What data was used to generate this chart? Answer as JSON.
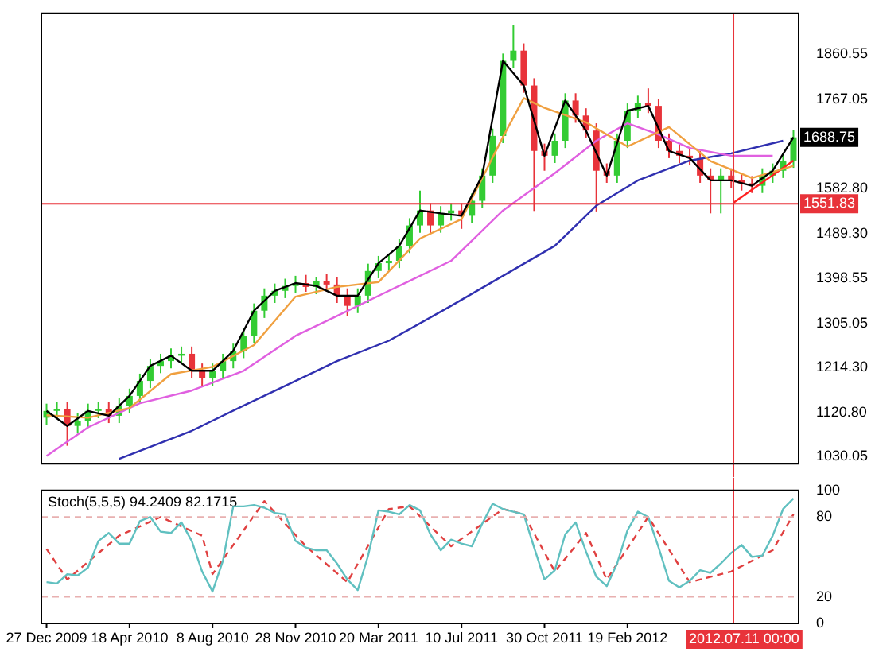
{
  "chart_data": [
    {
      "type": "candlestick",
      "x": [
        "2009-12-27",
        "2010-01-10",
        "2010-01-24",
        "2010-02-07",
        "2010-02-21",
        "2010-03-07",
        "2010-03-21",
        "2010-04-04",
        "2010-04-18",
        "2010-05-02",
        "2010-05-16",
        "2010-05-30",
        "2010-06-13",
        "2010-06-27",
        "2010-07-11",
        "2010-07-25",
        "2010-08-08",
        "2010-08-22",
        "2010-09-05",
        "2010-09-19",
        "2010-10-03",
        "2010-10-17",
        "2010-10-31",
        "2010-11-14",
        "2010-11-28",
        "2010-12-12",
        "2010-12-26",
        "2011-01-09",
        "2011-01-23",
        "2011-02-06",
        "2011-02-20",
        "2011-03-06",
        "2011-03-20",
        "2011-04-03",
        "2011-04-17",
        "2011-05-01",
        "2011-05-15",
        "2011-05-29",
        "2011-06-12",
        "2011-06-26",
        "2011-07-10",
        "2011-07-24",
        "2011-08-07",
        "2011-08-21",
        "2011-09-04",
        "2011-09-18",
        "2011-10-02",
        "2011-10-16",
        "2011-10-30",
        "2011-11-13",
        "2011-11-27",
        "2011-12-11",
        "2011-12-25",
        "2012-01-08",
        "2012-01-22",
        "2012-02-05",
        "2012-02-19",
        "2012-03-04",
        "2012-03-18",
        "2012-04-01",
        "2012-04-15",
        "2012-04-29",
        "2012-05-13",
        "2012-05-27",
        "2012-06-10",
        "2012-06-24",
        "2012-07-08",
        "2012-07-22",
        "2012-08-05",
        "2012-08-19",
        "2012-09-02",
        "2012-09-16",
        "2012-09-30"
      ],
      "ohlc": [
        [
          1110,
          1139,
          1095,
          1124
        ],
        [
          1124,
          1143,
          1109,
          1128
        ],
        [
          1128,
          1143,
          1052,
          1093
        ],
        [
          1093,
          1119,
          1078,
          1104
        ],
        [
          1104,
          1139,
          1089,
          1124
        ],
        [
          1124,
          1143,
          1109,
          1128
        ],
        [
          1128,
          1143,
          1099,
          1114
        ],
        [
          1114,
          1150,
          1099,
          1135
        ],
        [
          1135,
          1170,
          1120,
          1155
        ],
        [
          1155,
          1201,
          1140,
          1186
        ],
        [
          1186,
          1232,
          1171,
          1217
        ],
        [
          1217,
          1242,
          1202,
          1227
        ],
        [
          1227,
          1253,
          1212,
          1238
        ],
        [
          1238,
          1257,
          1223,
          1242
        ],
        [
          1242,
          1257,
          1192,
          1207
        ],
        [
          1207,
          1222,
          1176,
          1191
        ],
        [
          1191,
          1222,
          1176,
          1207
        ],
        [
          1207,
          1242,
          1192,
          1227
        ],
        [
          1227,
          1263,
          1212,
          1248
        ],
        [
          1248,
          1294,
          1233,
          1279
        ],
        [
          1279,
          1346,
          1264,
          1331
        ],
        [
          1331,
          1377,
          1316,
          1362
        ],
        [
          1362,
          1387,
          1347,
          1372
        ],
        [
          1372,
          1397,
          1357,
          1382
        ],
        [
          1382,
          1403,
          1367,
          1388
        ],
        [
          1388,
          1405,
          1370,
          1380
        ],
        [
          1380,
          1400,
          1365,
          1392
        ],
        [
          1392,
          1407,
          1370,
          1385
        ],
        [
          1385,
          1400,
          1347,
          1362
        ],
        [
          1362,
          1377,
          1320,
          1341
        ],
        [
          1341,
          1377,
          1326,
          1362
        ],
        [
          1362,
          1428,
          1347,
          1413
        ],
        [
          1413,
          1444,
          1398,
          1429
        ],
        [
          1429,
          1449,
          1414,
          1434
        ],
        [
          1434,
          1480,
          1419,
          1465
        ],
        [
          1465,
          1522,
          1450,
          1507
        ],
        [
          1507,
          1579,
          1492,
          1538
        ],
        [
          1538,
          1553,
          1490,
          1507
        ],
        [
          1507,
          1547,
          1492,
          1532
        ],
        [
          1532,
          1553,
          1517,
          1538
        ],
        [
          1538,
          1553,
          1500,
          1527
        ],
        [
          1527,
          1573,
          1512,
          1558
        ],
        [
          1558,
          1625,
          1543,
          1610
        ],
        [
          1610,
          1707,
          1595,
          1692
        ],
        [
          1692,
          1862,
          1677,
          1847
        ],
        [
          1847,
          1920,
          1832,
          1868
        ],
        [
          1868,
          1883,
          1781,
          1796
        ],
        [
          1796,
          1811,
          1537,
          1661
        ],
        [
          1661,
          1676,
          1620,
          1651
        ],
        [
          1651,
          1697,
          1636,
          1682
        ],
        [
          1682,
          1780,
          1667,
          1765
        ],
        [
          1765,
          1780,
          1719,
          1734
        ],
        [
          1734,
          1749,
          1688,
          1703
        ],
        [
          1703,
          1718,
          1536,
          1620
        ],
        [
          1620,
          1635,
          1595,
          1610
        ],
        [
          1610,
          1697,
          1595,
          1682
        ],
        [
          1682,
          1759,
          1667,
          1744
        ],
        [
          1744,
          1775,
          1729,
          1760
        ],
        [
          1760,
          1790,
          1739,
          1754
        ],
        [
          1754,
          1769,
          1667,
          1682
        ],
        [
          1682,
          1697,
          1646,
          1661
        ],
        [
          1661,
          1676,
          1636,
          1651
        ],
        [
          1651,
          1666,
          1631,
          1646
        ],
        [
          1646,
          1661,
          1595,
          1610
        ],
        [
          1610,
          1625,
          1532,
          1600
        ],
        [
          1600,
          1625,
          1532,
          1610
        ],
        [
          1610,
          1625,
          1585,
          1600
        ],
        [
          1600,
          1615,
          1579,
          1594
        ],
        [
          1594,
          1609,
          1574,
          1589
        ],
        [
          1589,
          1625,
          1574,
          1610
        ],
        [
          1610,
          1635,
          1595,
          1620
        ],
        [
          1620,
          1656,
          1605,
          1641
        ],
        [
          1641,
          1704,
          1626,
          1689
        ]
      ],
      "colors": [
        "#33cc33",
        "#33cc33",
        "#e8333a",
        "#33cc33",
        "#33cc33",
        "#33cc33",
        "#e8333a",
        "#33cc33",
        "#33cc33",
        "#33cc33",
        "#33cc33",
        "#33cc33",
        "#33cc33",
        "#33cc33",
        "#e8333a",
        "#e8333a",
        "#33cc33",
        "#33cc33",
        "#33cc33",
        "#33cc33",
        "#33cc33",
        "#33cc33",
        "#33cc33",
        "#33cc33",
        "#33cc33",
        "#e8333a",
        "#33cc33",
        "#e8333a",
        "#e8333a",
        "#e8333a",
        "#33cc33",
        "#33cc33",
        "#33cc33",
        "#33cc33",
        "#33cc33",
        "#33cc33",
        "#33cc33",
        "#e8333a",
        "#33cc33",
        "#33cc33",
        "#e8333a",
        "#33cc33",
        "#33cc33",
        "#33cc33",
        "#33cc33",
        "#33cc33",
        "#e8333a",
        "#e8333a",
        "#e8333a",
        "#33cc33",
        "#33cc33",
        "#e8333a",
        "#e8333a",
        "#e8333a",
        "#e8333a",
        "#33cc33",
        "#33cc33",
        "#33cc33",
        "#e8333a",
        "#e8333a",
        "#e8333a",
        "#e8333a",
        "#e8333a",
        "#e8333a",
        "#e8333a",
        "#33cc33",
        "#e8333a",
        "#e8333a",
        "#e8333a",
        "#33cc33",
        "#33cc33",
        "#33cc33",
        "#33cc33"
      ],
      "series": [
        {
          "type": "line",
          "color": "#000000",
          "x": [
            "2009-12-27",
            "2010-01-24",
            "2010-02-21",
            "2010-03-21",
            "2010-04-18",
            "2010-05-16",
            "2010-06-13",
            "2010-07-11",
            "2010-08-08",
            "2010-09-05",
            "2010-10-03",
            "2010-10-31",
            "2010-11-28",
            "2010-12-26",
            "2011-01-23",
            "2011-02-20",
            "2011-03-20",
            "2011-04-17",
            "2011-05-15",
            "2011-06-12",
            "2011-07-10",
            "2011-08-07",
            "2011-09-04",
            "2011-10-02",
            "2011-10-30",
            "2011-11-27",
            "2011-12-25",
            "2012-01-22",
            "2012-02-19",
            "2012-03-18",
            "2012-04-15",
            "2012-05-13",
            "2012-06-10",
            "2012-07-08",
            "2012-08-05",
            "2012-09-02",
            "2012-09-30"
          ],
          "values": [
            1124,
            1093,
            1124,
            1114,
            1155,
            1217,
            1238,
            1207,
            1207,
            1248,
            1331,
            1372,
            1388,
            1382,
            1362,
            1362,
            1429,
            1465,
            1538,
            1532,
            1527,
            1610,
            1847,
            1796,
            1651,
            1765,
            1703,
            1610,
            1744,
            1754,
            1661,
            1646,
            1600,
            1600,
            1589,
            1620,
            1689
          ]
        },
        {
          "type": "line",
          "color": "#f0a040",
          "x": [
            "2009-12-27",
            "2010-02-21",
            "2010-04-18",
            "2010-06-13",
            "2010-08-08",
            "2010-10-03",
            "2010-11-28",
            "2011-01-23",
            "2011-03-20",
            "2011-05-15",
            "2011-07-10",
            "2011-09-04",
            "2011-10-02",
            "2011-10-30",
            "2011-12-25",
            "2012-02-19",
            "2012-04-15",
            "2012-06-10",
            "2012-08-05",
            "2012-09-30"
          ],
          "values": [
            1115,
            1110,
            1130,
            1200,
            1215,
            1260,
            1360,
            1380,
            1390,
            1480,
            1520,
            1690,
            1770,
            1750,
            1720,
            1670,
            1710,
            1640,
            1605,
            1630
          ]
        },
        {
          "type": "line",
          "color": "#e060e0",
          "x": [
            "2009-12-27",
            "2010-02-21",
            "2010-05-02",
            "2010-07-11",
            "2010-09-19",
            "2010-11-28",
            "2011-01-23",
            "2011-04-03",
            "2011-06-26",
            "2011-09-04",
            "2011-11-13",
            "2012-01-08",
            "2012-02-19",
            "2012-04-01",
            "2012-05-13",
            "2012-07-08",
            "2012-09-02"
          ],
          "values": [
            1031,
            1090,
            1140,
            1166,
            1207,
            1279,
            1320,
            1372,
            1434,
            1538,
            1615,
            1682,
            1718,
            1695,
            1667,
            1651,
            1651
          ]
        },
        {
          "type": "line",
          "color": "#3030b0",
          "x": [
            "2010-04-04",
            "2010-07-11",
            "2010-09-19",
            "2010-11-28",
            "2011-01-23",
            "2011-04-03",
            "2011-06-26",
            "2011-09-04",
            "2011-11-13",
            "2012-01-08",
            "2012-03-04",
            "2012-05-13",
            "2012-07-08",
            "2012-09-16"
          ],
          "values": [
            1025,
            1083,
            1135,
            1186,
            1227,
            1269,
            1341,
            1403,
            1465,
            1548,
            1600,
            1641,
            1656,
            1682
          ]
        },
        {
          "type": "line",
          "color": "#ff2020",
          "x": [
            "2012-07-11",
            "2012-09-30"
          ],
          "values": [
            1554,
            1641
          ]
        }
      ],
      "ylim": [
        1015,
        1945
      ],
      "yticks": [
        1030.05,
        {
          "value": 1120.8,
          "label": "1120.80"
        },
        {
          "value": 1214.3,
          "label": "1214.30"
        },
        1305.05,
        1398.55,
        {
          "value": 1489.3,
          "label": "1489.30"
        },
        {
          "value": 1582.8,
          "label": "1582.80"
        },
        1767.05,
        1860.55
      ],
      "xlim": [
        "2009-12-20",
        "2012-10-07"
      ],
      "tick_labels": "y",
      "grid": false,
      "legend": false,
      "marker": "none",
      "ref_lines": [
        {
          "axis": "y",
          "value": 1551.83,
          "label": "1551.83",
          "color": "#e8333a"
        },
        {
          "axis": "x",
          "value": "2012-07-11",
          "color": "#e8333a"
        }
      ],
      "annotations": [
        {
          "text": "1688.75",
          "y": 1688.75
        }
      ]
    },
    {
      "type": "line",
      "title": "Stoch(5,5,5) 94.2409 82.1715",
      "x": [
        "2009-12-27",
        "2010-01-10",
        "2010-01-24",
        "2010-02-07",
        "2010-02-21",
        "2010-03-07",
        "2010-03-21",
        "2010-04-04",
        "2010-04-18",
        "2010-05-02",
        "2010-05-16",
        "2010-05-30",
        "2010-06-13",
        "2010-06-27",
        "2010-07-11",
        "2010-07-25",
        "2010-08-08",
        "2010-08-22",
        "2010-09-05",
        "2010-09-19",
        "2010-10-03",
        "2010-10-17",
        "2010-10-31",
        "2010-11-14",
        "2010-11-28",
        "2010-12-12",
        "2010-12-26",
        "2011-01-09",
        "2011-01-23",
        "2011-02-06",
        "2011-02-20",
        "2011-03-06",
        "2011-03-20",
        "2011-04-03",
        "2011-04-17",
        "2011-05-01",
        "2011-05-15",
        "2011-05-29",
        "2011-06-12",
        "2011-06-26",
        "2011-07-10",
        "2011-07-24",
        "2011-08-07",
        "2011-08-21",
        "2011-09-04",
        "2011-09-18",
        "2011-10-02",
        "2011-10-16",
        "2011-10-30",
        "2011-11-13",
        "2011-11-27",
        "2011-12-11",
        "2011-12-25",
        "2012-01-08",
        "2012-01-22",
        "2012-02-05",
        "2012-02-19",
        "2012-03-04",
        "2012-03-18",
        "2012-04-01",
        "2012-04-15",
        "2012-04-29",
        "2012-05-13",
        "2012-05-27",
        "2012-06-10",
        "2012-06-24",
        "2012-07-08",
        "2012-07-22",
        "2012-08-05",
        "2012-08-19",
        "2012-09-02",
        "2012-09-16",
        "2012-09-30"
      ],
      "series": [
        {
          "color": "#60c0c0",
          "values": [
            31,
            30,
            37,
            36,
            42,
            62,
            68,
            60,
            60,
            77,
            80,
            69,
            68,
            76,
            62,
            39,
            24,
            47,
            88,
            88,
            89,
            87,
            83,
            82,
            62,
            57,
            55,
            55,
            45,
            33,
            25,
            51,
            85,
            84,
            82,
            89,
            85,
            67,
            55,
            63,
            60,
            58,
            75,
            90,
            86,
            84,
            82,
            57,
            33,
            40,
            67,
            76,
            54,
            35,
            28,
            45,
            70,
            84,
            80,
            57,
            32,
            27,
            32,
            40,
            38,
            45,
            53,
            59,
            50,
            51,
            66,
            86,
            94
          ]
        },
        {
          "color": "#e04040",
          "line_style": "dashed",
          "x": [
            "2009-12-27",
            "2010-01-24",
            "2010-04-04",
            "2010-05-30",
            "2010-07-25",
            "2010-08-08",
            "2010-10-17",
            "2010-12-12",
            "2011-02-06",
            "2011-04-03",
            "2011-05-01",
            "2011-06-26",
            "2011-09-04",
            "2011-10-02",
            "2011-11-13",
            "2011-12-25",
            "2012-01-22",
            "2012-03-18",
            "2012-05-13",
            "2012-07-08",
            "2012-09-02",
            "2012-09-30"
          ],
          "values": [
            56,
            33,
            66,
            80,
            66,
            37,
            92,
            58,
            31,
            86,
            88,
            58,
            86,
            82,
            39,
            68,
            33,
            80,
            31,
            39,
            55,
            82
          ]
        }
      ],
      "ylim": [
        0,
        100
      ],
      "yticks": [
        0,
        20,
        80,
        100
      ],
      "xlim": [
        "2009-12-20",
        "2012-10-07"
      ],
      "xticks": [
        {
          "value": "2009-12-27",
          "label": "27 Dec 2009"
        },
        {
          "value": "2010-04-18",
          "label": "18 Apr 2010"
        },
        {
          "value": "2010-08-08",
          "label": "8 Aug 2010"
        },
        {
          "value": "2010-11-28",
          "label": "28 Nov 2010"
        },
        {
          "value": "2011-03-20",
          "label": "20 Mar 2011"
        },
        {
          "value": "2011-07-10",
          "label": "10 Jul 2011"
        },
        {
          "value": "2011-10-30",
          "label": "30 Oct 2011"
        },
        {
          "value": "2012-02-19",
          "label": "19 Feb 2012"
        }
      ],
      "grid": false,
      "legend": false,
      "marker": "none",
      "ref_lines": [
        {
          "axis": "y",
          "value": 80,
          "color": "#e8b0b0",
          "line_style": "dashed"
        },
        {
          "axis": "y",
          "value": 20,
          "color": "#e8b0b0",
          "line_style": "dashed"
        },
        {
          "axis": "x",
          "value": "2012-07-11",
          "label": "2012.07.11 00:00",
          "color": "#e8333a"
        }
      ]
    }
  ]
}
